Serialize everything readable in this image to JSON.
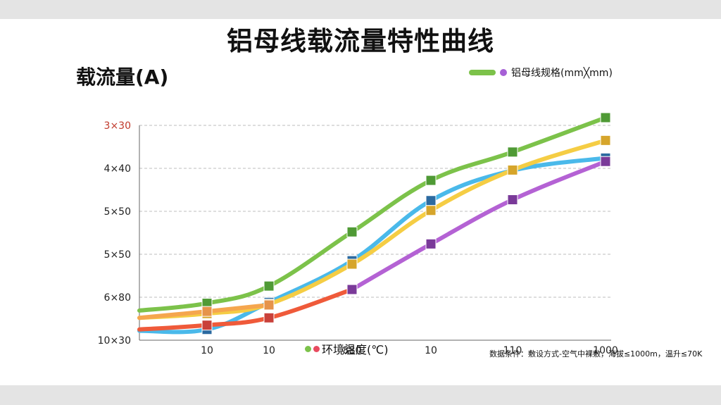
{
  "chart_data": {
    "type": "line",
    "title": "铝母线载流量特性曲线",
    "ylabel": "载流量(A)",
    "xlabel": "环境温度(℃)",
    "legend_label": "铝母线规格(mm╳mm)",
    "legend_position": "top-right",
    "y_tick_labels": [
      "3×30",
      "4×40",
      "5×50",
      "5×50",
      "6×80",
      "10×30"
    ],
    "x_tick_labels": [
      "10",
      "10",
      "880",
      "10",
      "110",
      "1000"
    ],
    "footnote": "数据条件：敷设方式-空气中裸敷，海拔≤1000m，温升≤70K",
    "grid": true,
    "y_range": [
      0,
      5
    ],
    "series": [
      {
        "color": "#4ab9ea",
        "marker_color": "#2c6aa0",
        "values": [
          0.25,
          0.88,
          1.85,
          3.25,
          3.95,
          4.24
        ],
        "start": 0.22
      },
      {
        "color": "#7cc24a",
        "marker_color": "#4f9a35",
        "values": [
          0.86,
          1.26,
          2.52,
          3.72,
          4.38,
          5.18
        ],
        "start": 0.69
      },
      {
        "color": "#f5cd44",
        "marker_color": "#d6a52b",
        "values": [
          0.62,
          0.84,
          1.77,
          3.02,
          3.96,
          4.65
        ],
        "start": 0.52
      },
      {
        "color": "#f5a64e",
        "marker_color": "#e6934a",
        "values": [
          0.67,
          0.82,
          null,
          null,
          null,
          null
        ],
        "start": 0.52
      },
      {
        "color": "#ef5a3a",
        "marker_color": "#c9413a",
        "values": [
          0.35,
          0.52,
          1.18,
          null,
          null,
          null
        ],
        "start": 0.25
      },
      {
        "color": "#b462d4",
        "marker_color": "#7a3a99",
        "values": [
          null,
          null,
          1.18,
          2.24,
          3.27,
          4.16
        ],
        "start": null
      }
    ]
  }
}
